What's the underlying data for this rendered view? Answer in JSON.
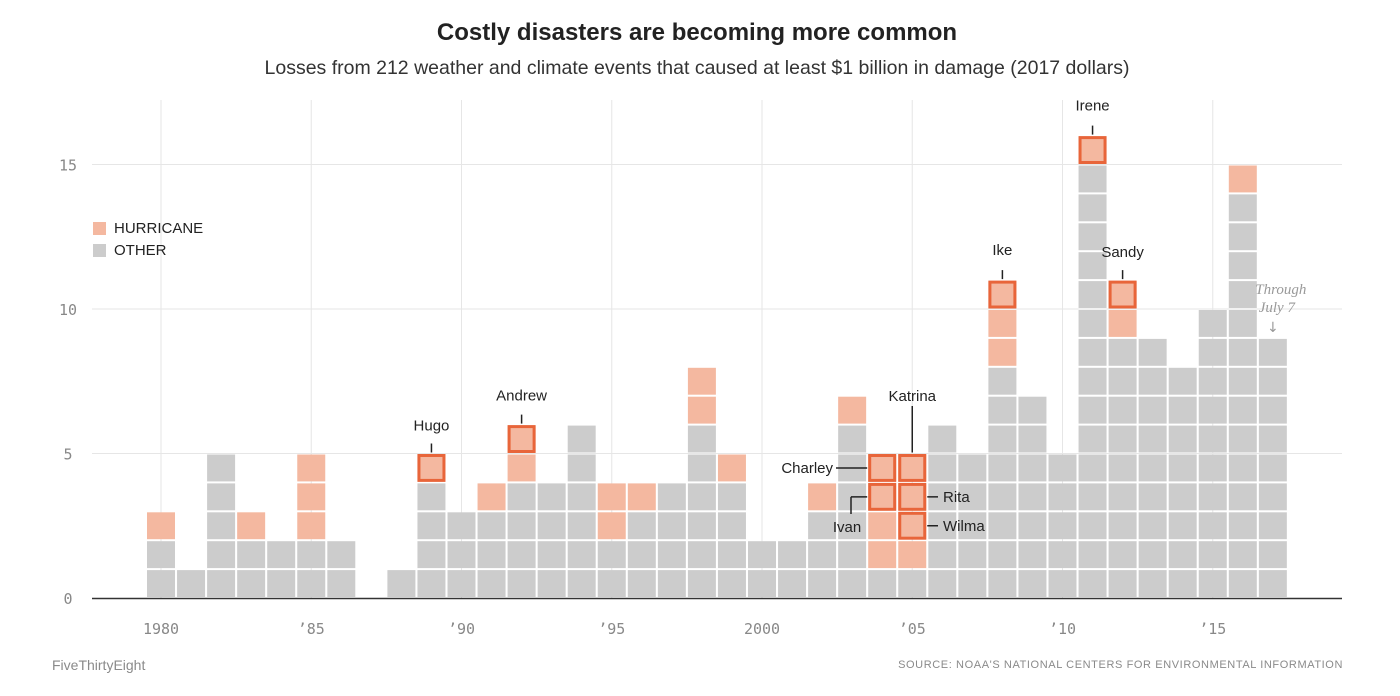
{
  "title": "Costly disasters are becoming more common",
  "subtitle": "Losses from 212 weather and climate events that caused at least $1 billion in damage (2017 dollars)",
  "footer": {
    "brand": "FiveThirtyEight",
    "source": "SOURCE: NOAA'S NATIONAL CENTERS FOR ENVIRONMENTAL INFORMATION"
  },
  "legend": {
    "hurricane": "HURRICANE",
    "other": "OTHER"
  },
  "colors": {
    "hurricane": "#f4b8a0",
    "other": "#cccccc",
    "highlight": "#e8653a",
    "axis": "#333333",
    "grid": "#e6e6e6",
    "tick": "#888888",
    "note": "#999999"
  },
  "chart_data": {
    "type": "bar",
    "stacked": true,
    "x": [
      1980,
      1981,
      1982,
      1983,
      1984,
      1985,
      1986,
      1987,
      1988,
      1989,
      1990,
      1991,
      1992,
      1993,
      1994,
      1995,
      1996,
      1997,
      1998,
      1999,
      2000,
      2001,
      2002,
      2003,
      2004,
      2005,
      2006,
      2007,
      2008,
      2009,
      2010,
      2011,
      2012,
      2013,
      2014,
      2015,
      2016,
      2017
    ],
    "series": [
      {
        "name": "OTHER",
        "values": [
          2,
          1,
          5,
          2,
          2,
          2,
          2,
          0,
          1,
          4,
          3,
          3,
          4,
          4,
          6,
          2,
          3,
          4,
          6,
          4,
          2,
          2,
          3,
          6,
          1,
          1,
          6,
          5,
          8,
          7,
          5,
          15,
          9,
          9,
          8,
          10,
          14,
          9
        ]
      },
      {
        "name": "HURRICANE",
        "values": [
          1,
          0,
          0,
          1,
          0,
          3,
          0,
          0,
          0,
          1,
          0,
          1,
          2,
          0,
          0,
          2,
          1,
          0,
          2,
          1,
          0,
          0,
          1,
          1,
          4,
          4,
          0,
          0,
          3,
          0,
          0,
          1,
          2,
          0,
          0,
          0,
          1,
          0
        ]
      }
    ],
    "yticks": [
      0,
      5,
      10,
      15
    ],
    "ylim": [
      0,
      16.5
    ],
    "xticks": [
      {
        "x": 1980,
        "label": "1980"
      },
      {
        "x": 1985,
        "label": "’85"
      },
      {
        "x": 1990,
        "label": "’90"
      },
      {
        "x": 1995,
        "label": "’95"
      },
      {
        "x": 2000,
        "label": "2000"
      },
      {
        "x": 2005,
        "label": "’05"
      },
      {
        "x": 2010,
        "label": "’10"
      },
      {
        "x": 2015,
        "label": "’15"
      }
    ],
    "highlighted_storms": [
      {
        "name": "Hugo",
        "year": 1989,
        "level": 5
      },
      {
        "name": "Andrew",
        "year": 1992,
        "level": 6
      },
      {
        "name": "Charley",
        "year": 2004,
        "level": 5
      },
      {
        "name": "Ivan",
        "year": 2004,
        "level": 4
      },
      {
        "name": "Katrina",
        "year": 2005,
        "level": 5
      },
      {
        "name": "Rita",
        "year": 2005,
        "level": 4
      },
      {
        "name": "Wilma",
        "year": 2005,
        "level": 3
      },
      {
        "name": "Ike",
        "year": 2008,
        "level": 11
      },
      {
        "name": "Irene",
        "year": 2011,
        "level": 16
      },
      {
        "name": "Sandy",
        "year": 2012,
        "level": 11
      }
    ],
    "note": {
      "year": 2017,
      "lines": [
        "Through",
        "July 7"
      ],
      "arrow": "↓"
    }
  }
}
